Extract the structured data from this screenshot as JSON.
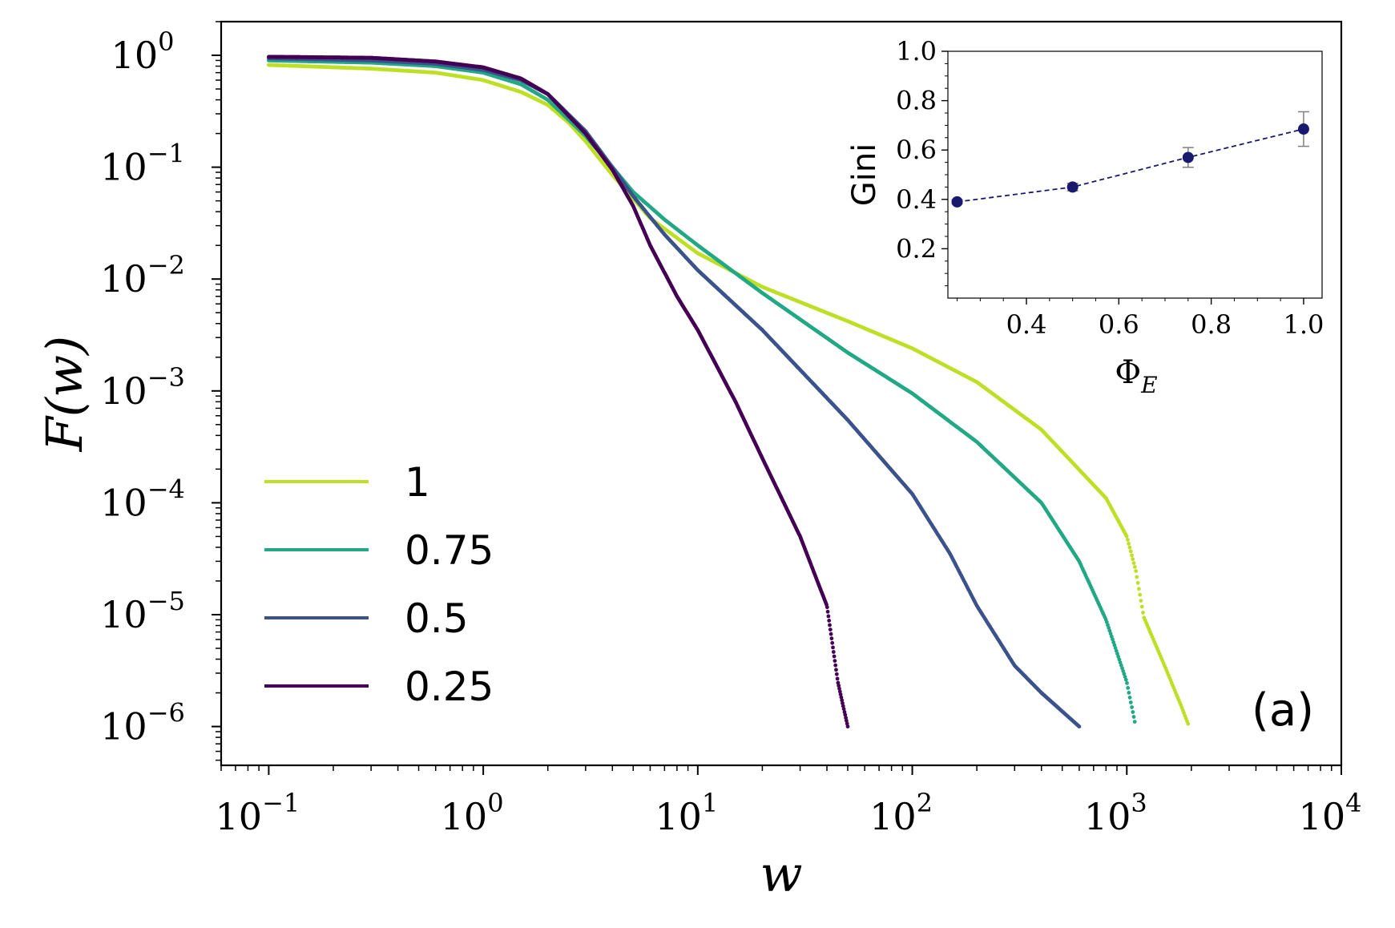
{
  "chart_data": {
    "main": {
      "type": "scatter",
      "panel_label": "(a)",
      "xlabel": "w",
      "ylabel": "F(w)",
      "xscale": "log",
      "yscale": "log",
      "xlim": [
        0.06,
        10000
      ],
      "ylim": [
        4.5e-07,
        2.0
      ],
      "x_ticks": [
        {
          "value": 0.1,
          "base": "10",
          "exp": "−1"
        },
        {
          "value": 1,
          "base": "10",
          "exp": "0"
        },
        {
          "value": 10,
          "base": "10",
          "exp": "1"
        },
        {
          "value": 100,
          "base": "10",
          "exp": "2"
        },
        {
          "value": 1000,
          "base": "10",
          "exp": "3"
        },
        {
          "value": 10000,
          "base": "10",
          "exp": "4"
        }
      ],
      "y_ticks": [
        {
          "value": 1,
          "base": "10",
          "exp": "0"
        },
        {
          "value": 0.1,
          "base": "10",
          "exp": "−1"
        },
        {
          "value": 0.01,
          "base": "10",
          "exp": "−2"
        },
        {
          "value": 0.001,
          "base": "10",
          "exp": "−3"
        },
        {
          "value": 0.0001,
          "base": "10",
          "exp": "−4"
        },
        {
          "value": 1e-05,
          "base": "10",
          "exp": "−5"
        },
        {
          "value": 1e-06,
          "base": "10",
          "exp": "−6"
        }
      ],
      "legend_position": "lower-left",
      "series": [
        {
          "name": "1",
          "color": "#bddf26",
          "curve": [
            [
              0.1,
              0.82
            ],
            [
              0.3,
              0.76
            ],
            [
              0.6,
              0.7
            ],
            [
              1.0,
              0.6
            ],
            [
              1.5,
              0.47
            ],
            [
              2.0,
              0.36
            ],
            [
              2.5,
              0.25
            ],
            [
              3.0,
              0.17
            ],
            [
              4.0,
              0.085
            ],
            [
              6.0,
              0.035
            ],
            [
              10,
              0.017
            ],
            [
              20,
              0.0085
            ],
            [
              50,
              0.0042
            ],
            [
              100,
              0.0024
            ],
            [
              200,
              0.0012
            ],
            [
              400,
              0.00045
            ],
            [
              800,
              0.00011
            ],
            [
              1000,
              5e-05
            ],
            [
              1100,
              2.5e-05
            ],
            [
              1200,
              9.5e-06
            ],
            [
              1500,
              3.5e-06
            ],
            [
              1800,
              1.5e-06
            ],
            [
              1950,
              1e-06
            ]
          ]
        },
        {
          "name": "0.75",
          "color": "#22a884",
          "curve": [
            [
              0.1,
              0.9
            ],
            [
              0.3,
              0.86
            ],
            [
              0.6,
              0.8
            ],
            [
              1.0,
              0.7
            ],
            [
              1.5,
              0.55
            ],
            [
              2.0,
              0.4
            ],
            [
              3.0,
              0.19
            ],
            [
              4.0,
              0.1
            ],
            [
              5.0,
              0.06
            ],
            [
              7.0,
              0.034
            ],
            [
              10,
              0.02
            ],
            [
              20,
              0.0075
            ],
            [
              50,
              0.0022
            ],
            [
              100,
              0.00095
            ],
            [
              200,
              0.00035
            ],
            [
              400,
              0.0001
            ],
            [
              600,
              3e-05
            ],
            [
              800,
              9e-06
            ],
            [
              1000,
              2.5e-06
            ],
            [
              1100,
              1e-06
            ]
          ]
        },
        {
          "name": "0.5",
          "color": "#3b528b",
          "curve": [
            [
              0.1,
              0.94
            ],
            [
              0.3,
              0.9
            ],
            [
              0.6,
              0.84
            ],
            [
              1.0,
              0.74
            ],
            [
              1.5,
              0.6
            ],
            [
              2.0,
              0.45
            ],
            [
              3.0,
              0.21
            ],
            [
              4.0,
              0.1
            ],
            [
              5.0,
              0.055
            ],
            [
              7.0,
              0.025
            ],
            [
              10,
              0.012
            ],
            [
              20,
              0.0035
            ],
            [
              50,
              0.00055
            ],
            [
              100,
              0.00012
            ],
            [
              150,
              3.5e-05
            ],
            [
              200,
              1.2e-05
            ],
            [
              300,
              3.5e-06
            ],
            [
              400,
              2e-06
            ],
            [
              600,
              1e-06
            ]
          ]
        },
        {
          "name": "0.25",
          "color": "#440154",
          "curve": [
            [
              0.1,
              0.97
            ],
            [
              0.3,
              0.95
            ],
            [
              0.6,
              0.88
            ],
            [
              1.0,
              0.78
            ],
            [
              1.5,
              0.62
            ],
            [
              2.0,
              0.45
            ],
            [
              3.0,
              0.2
            ],
            [
              4.0,
              0.095
            ],
            [
              5.0,
              0.045
            ],
            [
              6.0,
              0.02
            ],
            [
              8.0,
              0.007
            ],
            [
              10,
              0.0035
            ],
            [
              15,
              0.0008
            ],
            [
              20,
              0.00025
            ],
            [
              30,
              5e-05
            ],
            [
              40,
              1.2e-05
            ],
            [
              45,
              2.5e-06
            ],
            [
              50,
              1e-06
            ]
          ]
        }
      ]
    },
    "inset": {
      "type": "scatter",
      "xlabel": "Φ",
      "xlabel_sub": "E",
      "ylabel": "Gini",
      "xlim": [
        0.23,
        1.04
      ],
      "ylim": [
        0.0,
        1.0
      ],
      "x_ticks": [
        "0.4",
        "0.6",
        "0.8",
        "1.0"
      ],
      "y_ticks": [
        "0.2",
        "0.4",
        "0.6",
        "0.8",
        "1.0"
      ],
      "color": "#191970",
      "points": [
        {
          "x": 0.25,
          "y": 0.39,
          "err": 0.008
        },
        {
          "x": 0.5,
          "y": 0.45,
          "err": 0.015
        },
        {
          "x": 0.75,
          "y": 0.57,
          "err": 0.04
        },
        {
          "x": 1.0,
          "y": 0.685,
          "err": 0.07
        }
      ]
    }
  }
}
